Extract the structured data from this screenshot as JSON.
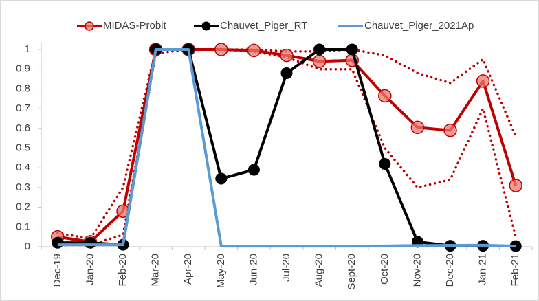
{
  "chart_data": {
    "type": "line",
    "categories": [
      "Dec-19",
      "Jan-20",
      "Feb-20",
      "Mar-20",
      "Apr-20",
      "May-20",
      "Jun-20",
      "Jul-20",
      "Aug-20",
      "Sept-20",
      "Oct-20",
      "Nov-20",
      "Dec-20",
      "Jan-21",
      "Feb-21"
    ],
    "series": [
      {
        "color": "#c00000",
        "style": "dotted",
        "values": [
          0.07,
          0.04,
          0.3,
          1.0,
          1.0,
          1.0,
          1.0,
          0.99,
          0.99,
          1.0,
          0.97,
          0.88,
          0.83,
          0.95,
          0.56
        ]
      },
      {
        "color": "#c00000",
        "style": "dotted",
        "values": [
          0.03,
          0.01,
          0.06,
          0.98,
          1.0,
          1.0,
          0.99,
          0.96,
          0.9,
          0.9,
          0.5,
          0.3,
          0.34,
          0.7,
          0.05
        ]
      },
      {
        "name": "MIDAS-Probit",
        "color": "#c00000",
        "style": "marker-red",
        "values": [
          0.05,
          0.025,
          0.18,
          1.0,
          1.0,
          1.0,
          0.995,
          0.97,
          0.94,
          0.945,
          0.765,
          0.605,
          0.59,
          0.84,
          0.31
        ]
      },
      {
        "name": "Chauvet_Piger_RT",
        "color": "#000000",
        "style": "marker-black",
        "values": [
          0.02,
          0.02,
          0.01,
          1.0,
          1.0,
          0.345,
          0.39,
          0.88,
          1.0,
          1.0,
          0.42,
          0.025,
          0.005,
          0.005,
          0.003
        ]
      },
      {
        "name": "Chauvet_Piger_2021Ap",
        "color": "#5b9bd5",
        "style": "plain",
        "values": [
          0.01,
          0.01,
          0.01,
          1.0,
          1.0,
          0.003,
          0.003,
          0.003,
          0.003,
          0.003,
          0.004,
          0.006,
          0.007,
          0.008,
          0.003
        ]
      }
    ],
    "ylim": [
      0,
      1
    ],
    "yticks": [
      0,
      0.1,
      0.2,
      0.3,
      0.4,
      0.5,
      0.6,
      0.7,
      0.8,
      0.9,
      1
    ],
    "grid": false,
    "legend": "top"
  }
}
